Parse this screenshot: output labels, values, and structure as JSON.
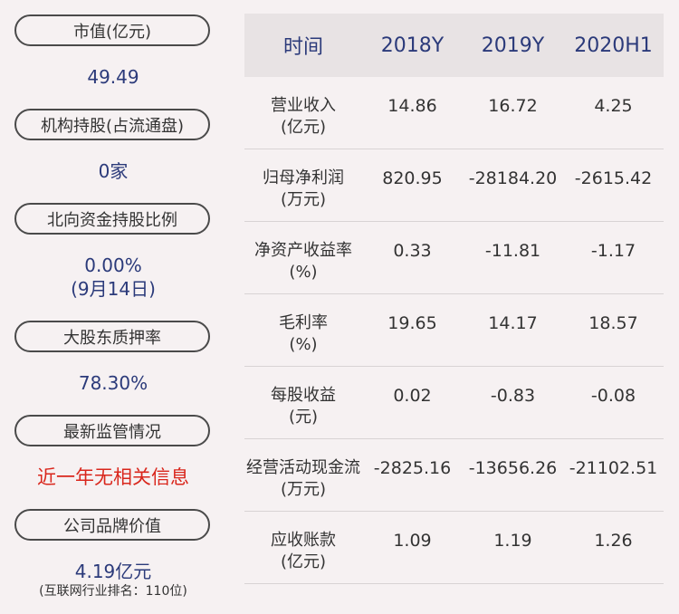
{
  "left": {
    "items": [
      {
        "label": "市值(亿元)",
        "value": "49.49"
      },
      {
        "label": "机构持股(占流通盘)",
        "value": "0家"
      },
      {
        "label": "北向资金持股比例",
        "value": "0.00%",
        "value2": "(9月14日)"
      },
      {
        "label": "大股东质押率",
        "value": "78.30%"
      },
      {
        "label": "最新监管情况",
        "value": "近一年无相关信息"
      },
      {
        "label": "公司品牌价值",
        "value": "4.19亿元",
        "note": "(互联网行业排名：110位)"
      }
    ]
  },
  "table": {
    "headers": [
      "时间",
      "2018Y",
      "2019Y",
      "2020H1"
    ],
    "rows": [
      {
        "label1": "营业收入",
        "label2": "(亿元)",
        "values": [
          "14.86",
          "16.72",
          "4.25"
        ]
      },
      {
        "label1": "归母净利润",
        "label2": "(万元)",
        "values": [
          "820.95",
          "-28184.20",
          "-2615.42"
        ]
      },
      {
        "label1": "净资产收益率",
        "label2": "(%)",
        "values": [
          "0.33",
          "-11.81",
          "-1.17"
        ]
      },
      {
        "label1": "毛利率",
        "label2": "(%)",
        "values": [
          "19.65",
          "14.17",
          "18.57"
        ]
      },
      {
        "label1": "每股收益",
        "label2": "(元)",
        "values": [
          "0.02",
          "-0.83",
          "-0.08"
        ]
      },
      {
        "label1": "经营活动现金流",
        "label2": "(万元)",
        "values": [
          "-2825.16",
          "-13656.26",
          "-21102.51"
        ]
      },
      {
        "label1": "应收账款",
        "label2": "(亿元)",
        "values": [
          "1.09",
          "1.19",
          "1.26"
        ]
      }
    ]
  }
}
